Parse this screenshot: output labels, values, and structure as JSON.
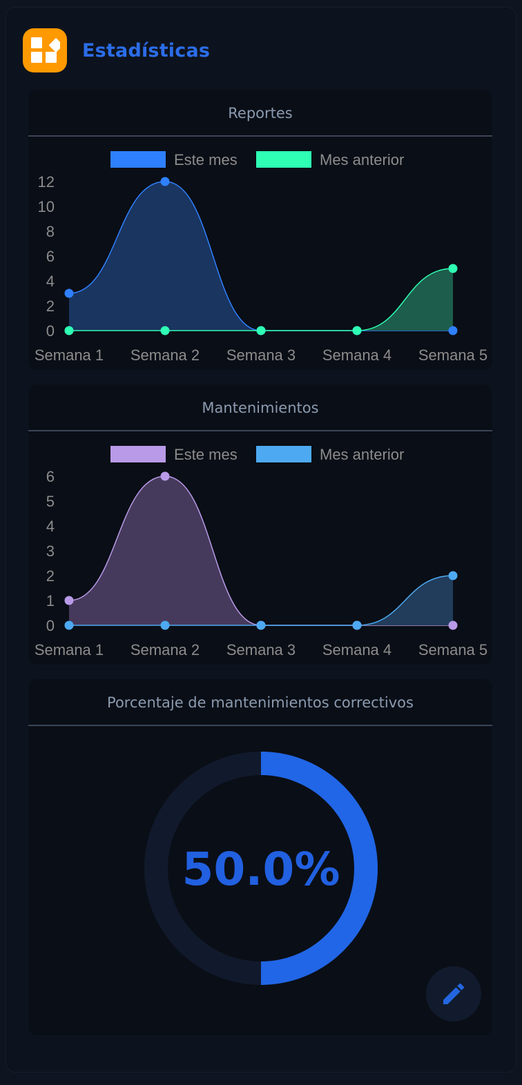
{
  "header": {
    "title": "Estadísticas",
    "logo_icon": "widgets-icon",
    "logo_color": "#ff9900"
  },
  "colors": {
    "background": "#0d131e",
    "card": "#0a0e16",
    "accent": "#2b6de8"
  },
  "cards": {
    "reportes": {
      "title": "Reportes"
    },
    "mantenimientos": {
      "title": "Mantenimientos"
    },
    "porcentaje": {
      "title": "Porcentaje de mantenimientos correctivos"
    }
  },
  "fab": {
    "icon": "pencil-icon"
  },
  "chart_data": [
    {
      "type": "area",
      "title": "Reportes",
      "categories": [
        "Semana 1",
        "Semana 2",
        "Semana 3",
        "Semana 4",
        "Semana 5"
      ],
      "ylim": [
        0,
        12
      ],
      "yticks": [
        "0",
        "2",
        "4",
        "6",
        "8",
        "10",
        "12"
      ],
      "legend_position": "top",
      "grid": false,
      "series": [
        {
          "name": "Este mes",
          "values": [
            3,
            12,
            0,
            0,
            0
          ],
          "color": "#2f80ff",
          "fill": "#1a3560"
        },
        {
          "name": "Mes anterior",
          "values": [
            0,
            0,
            0,
            0,
            5
          ],
          "color": "#2effb4",
          "fill": "#1d5d4b"
        }
      ]
    },
    {
      "type": "area",
      "title": "Mantenimientos",
      "categories": [
        "Semana 1",
        "Semana 2",
        "Semana 3",
        "Semana 4",
        "Semana 5"
      ],
      "ylim": [
        0,
        6
      ],
      "yticks": [
        "0",
        "1",
        "2",
        "3",
        "4",
        "5",
        "6"
      ],
      "legend_position": "top",
      "grid": false,
      "series": [
        {
          "name": "Este mes",
          "values": [
            1,
            6,
            0,
            0,
            0
          ],
          "color": "#b99ae8",
          "fill": "#463a5c"
        },
        {
          "name": "Mes anterior",
          "values": [
            0,
            0,
            0,
            0,
            2
          ],
          "color": "#4daaf2",
          "fill": "#213d5b"
        }
      ]
    },
    {
      "type": "pie",
      "title": "Porcentaje de mantenimientos correctivos",
      "label": "50.0%",
      "values": [
        50.0,
        50.0
      ],
      "colors": [
        "#2166e6",
        "#111a2c"
      ]
    }
  ]
}
